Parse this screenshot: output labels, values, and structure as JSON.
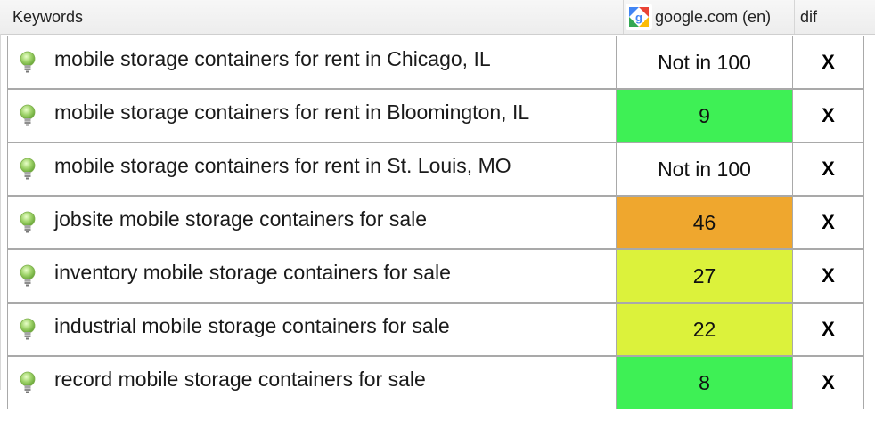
{
  "header": {
    "keywords_label": "Keywords",
    "engine_label": "google.com (en)",
    "dif_label": "dif"
  },
  "rows": [
    {
      "keyword": "mobile storage containers for rent in Chicago, IL",
      "rank": "Not in 100",
      "rank_color": "#ffffff",
      "dif": "X"
    },
    {
      "keyword": "mobile storage containers for rent in Bloomington, IL",
      "rank": "9",
      "rank_color": "#3ef055",
      "dif": "X"
    },
    {
      "keyword": "mobile storage containers for rent in St. Louis, MO",
      "rank": "Not in 100",
      "rank_color": "#ffffff",
      "dif": "X"
    },
    {
      "keyword": "jobsite mobile storage containers for sale",
      "rank": "46",
      "rank_color": "#efa72e",
      "dif": "X"
    },
    {
      "keyword": "inventory mobile storage containers for sale",
      "rank": "27",
      "rank_color": "#dcf23b",
      "dif": "X"
    },
    {
      "keyword": "industrial mobile storage containers for sale",
      "rank": "22",
      "rank_color": "#dcf23b",
      "dif": "X"
    },
    {
      "keyword": "record mobile storage containers for sale",
      "rank": "8",
      "rank_color": "#3ef055",
      "dif": "X"
    }
  ],
  "icons": {
    "keyword_status": "lightbulb-icon",
    "engine": "google-logo-icon"
  }
}
